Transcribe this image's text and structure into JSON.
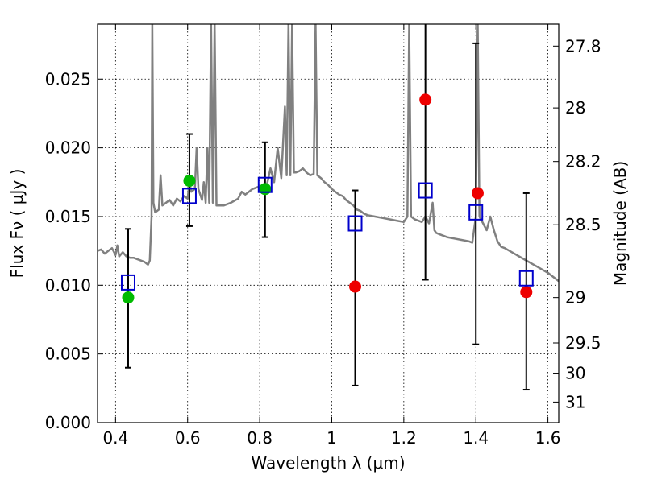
{
  "chart_data": {
    "type": "scatter",
    "xlabel": "Wavelength  λ (μm)",
    "ylabel": "Flux  Fν  ( μJy )",
    "y2label": "Magnitude (AB)",
    "xlim": [
      0.35,
      1.63
    ],
    "ylim": [
      0.0,
      0.029
    ],
    "grid": true,
    "x_ticks": [
      0.4,
      0.6,
      0.8,
      1.0,
      1.2,
      1.4,
      1.6
    ],
    "x_tick_labels": [
      "0.4",
      "0.6",
      "0.8",
      "1",
      "1.2",
      "1.4",
      "1.6"
    ],
    "y_ticks": [
      0.0,
      0.005,
      0.01,
      0.015,
      0.02,
      0.025
    ],
    "y_tick_labels": [
      "0.000",
      "0.005",
      "0.010",
      "0.015",
      "0.020",
      "0.025"
    ],
    "y2_ticks": [
      {
        "label": "27.8",
        "flux": 0.0274
      },
      {
        "label": "28",
        "flux": 0.0229
      },
      {
        "label": "28.2",
        "flux": 0.019
      },
      {
        "label": "28.5",
        "flux": 0.0144
      },
      {
        "label": "29",
        "flux": 0.0091
      },
      {
        "label": "29.5",
        "flux": 0.0058
      },
      {
        "label": "30",
        "flux": 0.0036
      },
      {
        "label": "31",
        "flux": 0.0015
      }
    ],
    "model_spectrum": {
      "color": "#808080",
      "points": [
        [
          0.35,
          0.0125
        ],
        [
          0.36,
          0.0126
        ],
        [
          0.37,
          0.0123
        ],
        [
          0.38,
          0.0125
        ],
        [
          0.39,
          0.0127
        ],
        [
          0.4,
          0.0122
        ],
        [
          0.405,
          0.0129
        ],
        [
          0.41,
          0.0121
        ],
        [
          0.42,
          0.0124
        ],
        [
          0.43,
          0.0121
        ],
        [
          0.44,
          0.012
        ],
        [
          0.45,
          0.012
        ],
        [
          0.46,
          0.0119
        ],
        [
          0.47,
          0.0118
        ],
        [
          0.48,
          0.0117
        ],
        [
          0.49,
          0.0115
        ],
        [
          0.495,
          0.0118
        ],
        [
          0.5,
          0.015
        ],
        [
          0.502,
          0.029
        ],
        [
          0.505,
          0.016
        ],
        [
          0.51,
          0.0153
        ],
        [
          0.52,
          0.0155
        ],
        [
          0.525,
          0.018
        ],
        [
          0.53,
          0.0158
        ],
        [
          0.54,
          0.016
        ],
        [
          0.55,
          0.0162
        ],
        [
          0.56,
          0.0158
        ],
        [
          0.57,
          0.0163
        ],
        [
          0.58,
          0.0161
        ],
        [
          0.59,
          0.0165
        ],
        [
          0.6,
          0.0163
        ],
        [
          0.605,
          0.0175
        ],
        [
          0.61,
          0.0168
        ],
        [
          0.62,
          0.017
        ],
        [
          0.625,
          0.02
        ],
        [
          0.63,
          0.017
        ],
        [
          0.64,
          0.0162
        ],
        [
          0.645,
          0.0175
        ],
        [
          0.65,
          0.016
        ],
        [
          0.655,
          0.02
        ],
        [
          0.66,
          0.016
        ],
        [
          0.665,
          0.029
        ],
        [
          0.67,
          0.016
        ],
        [
          0.675,
          0.029
        ],
        [
          0.68,
          0.0158
        ],
        [
          0.7,
          0.0158
        ],
        [
          0.72,
          0.016
        ],
        [
          0.74,
          0.0163
        ],
        [
          0.75,
          0.0168
        ],
        [
          0.76,
          0.0166
        ],
        [
          0.78,
          0.017
        ],
        [
          0.8,
          0.0172
        ],
        [
          0.82,
          0.0173
        ],
        [
          0.83,
          0.0185
        ],
        [
          0.84,
          0.0175
        ],
        [
          0.85,
          0.02
        ],
        [
          0.86,
          0.0178
        ],
        [
          0.87,
          0.023
        ],
        [
          0.875,
          0.018
        ],
        [
          0.88,
          0.029
        ],
        [
          0.885,
          0.018
        ],
        [
          0.89,
          0.029
        ],
        [
          0.895,
          0.0182
        ],
        [
          0.9,
          0.0182
        ],
        [
          0.91,
          0.0183
        ],
        [
          0.92,
          0.0185
        ],
        [
          0.93,
          0.0182
        ],
        [
          0.94,
          0.018
        ],
        [
          0.95,
          0.0181
        ],
        [
          0.955,
          0.029
        ],
        [
          0.96,
          0.018
        ],
        [
          0.97,
          0.0178
        ],
        [
          0.98,
          0.0175
        ],
        [
          0.99,
          0.0173
        ],
        [
          1.0,
          0.017
        ],
        [
          1.01,
          0.0168
        ],
        [
          1.02,
          0.0166
        ],
        [
          1.03,
          0.0165
        ],
        [
          1.04,
          0.0162
        ],
        [
          1.05,
          0.016
        ],
        [
          1.06,
          0.0158
        ],
        [
          1.07,
          0.0155
        ],
        [
          1.08,
          0.0154
        ],
        [
          1.09,
          0.0152
        ],
        [
          1.1,
          0.0151
        ],
        [
          1.12,
          0.015
        ],
        [
          1.14,
          0.0149
        ],
        [
          1.16,
          0.0148
        ],
        [
          1.18,
          0.0147
        ],
        [
          1.2,
          0.0146
        ],
        [
          1.21,
          0.015
        ],
        [
          1.215,
          0.029
        ],
        [
          1.22,
          0.015
        ],
        [
          1.23,
          0.0148
        ],
        [
          1.24,
          0.0147
        ],
        [
          1.25,
          0.0146
        ],
        [
          1.26,
          0.015
        ],
        [
          1.27,
          0.0145
        ],
        [
          1.28,
          0.016
        ],
        [
          1.285,
          0.014
        ],
        [
          1.29,
          0.0138
        ],
        [
          1.3,
          0.0137
        ],
        [
          1.32,
          0.0135
        ],
        [
          1.34,
          0.0134
        ],
        [
          1.36,
          0.0133
        ],
        [
          1.38,
          0.0132
        ],
        [
          1.39,
          0.0131
        ],
        [
          1.4,
          0.015
        ],
        [
          1.405,
          0.029
        ],
        [
          1.41,
          0.015
        ],
        [
          1.42,
          0.0145
        ],
        [
          1.43,
          0.014
        ],
        [
          1.44,
          0.015
        ],
        [
          1.45,
          0.014
        ],
        [
          1.46,
          0.0132
        ],
        [
          1.47,
          0.0128
        ],
        [
          1.48,
          0.0127
        ],
        [
          1.5,
          0.0124
        ],
        [
          1.52,
          0.0121
        ],
        [
          1.54,
          0.0118
        ],
        [
          1.56,
          0.0115
        ],
        [
          1.58,
          0.0112
        ],
        [
          1.6,
          0.0109
        ],
        [
          1.62,
          0.0105
        ],
        [
          1.63,
          0.0103
        ]
      ]
    },
    "series": [
      {
        "marker": "open-square",
        "color": "#0000cc",
        "points": [
          {
            "x": 0.435,
            "y": 0.0102,
            "err_low": 0.004,
            "err_high": 0.0141
          },
          {
            "x": 0.605,
            "y": 0.0165,
            "err_low": 0.0143,
            "err_high": 0.021
          },
          {
            "x": 0.815,
            "y": 0.0173,
            "err_low": 0.0135,
            "err_high": 0.0204
          },
          {
            "x": 1.065,
            "y": 0.0145,
            "err_low": 0.0027,
            "err_high": 0.0169
          },
          {
            "x": 1.26,
            "y": 0.0169,
            "err_low": 0.0104,
            "err_high": 0.03
          },
          {
            "x": 1.4,
            "y": 0.0153,
            "err_low": 0.0057,
            "err_high": 0.0276
          },
          {
            "x": 1.54,
            "y": 0.0105,
            "err_low": 0.0024,
            "err_high": 0.0167
          }
        ]
      },
      {
        "marker": "filled-circle",
        "color": "#00bb00",
        "points": [
          {
            "x": 0.435,
            "y": 0.0091
          },
          {
            "x": 0.605,
            "y": 0.0176
          },
          {
            "x": 0.815,
            "y": 0.017
          }
        ]
      },
      {
        "marker": "filled-circle",
        "color": "#ee0000",
        "points": [
          {
            "x": 1.065,
            "y": 0.0099
          },
          {
            "x": 1.26,
            "y": 0.0235
          },
          {
            "x": 1.405,
            "y": 0.0167
          },
          {
            "x": 1.54,
            "y": 0.0095
          }
        ]
      }
    ]
  }
}
